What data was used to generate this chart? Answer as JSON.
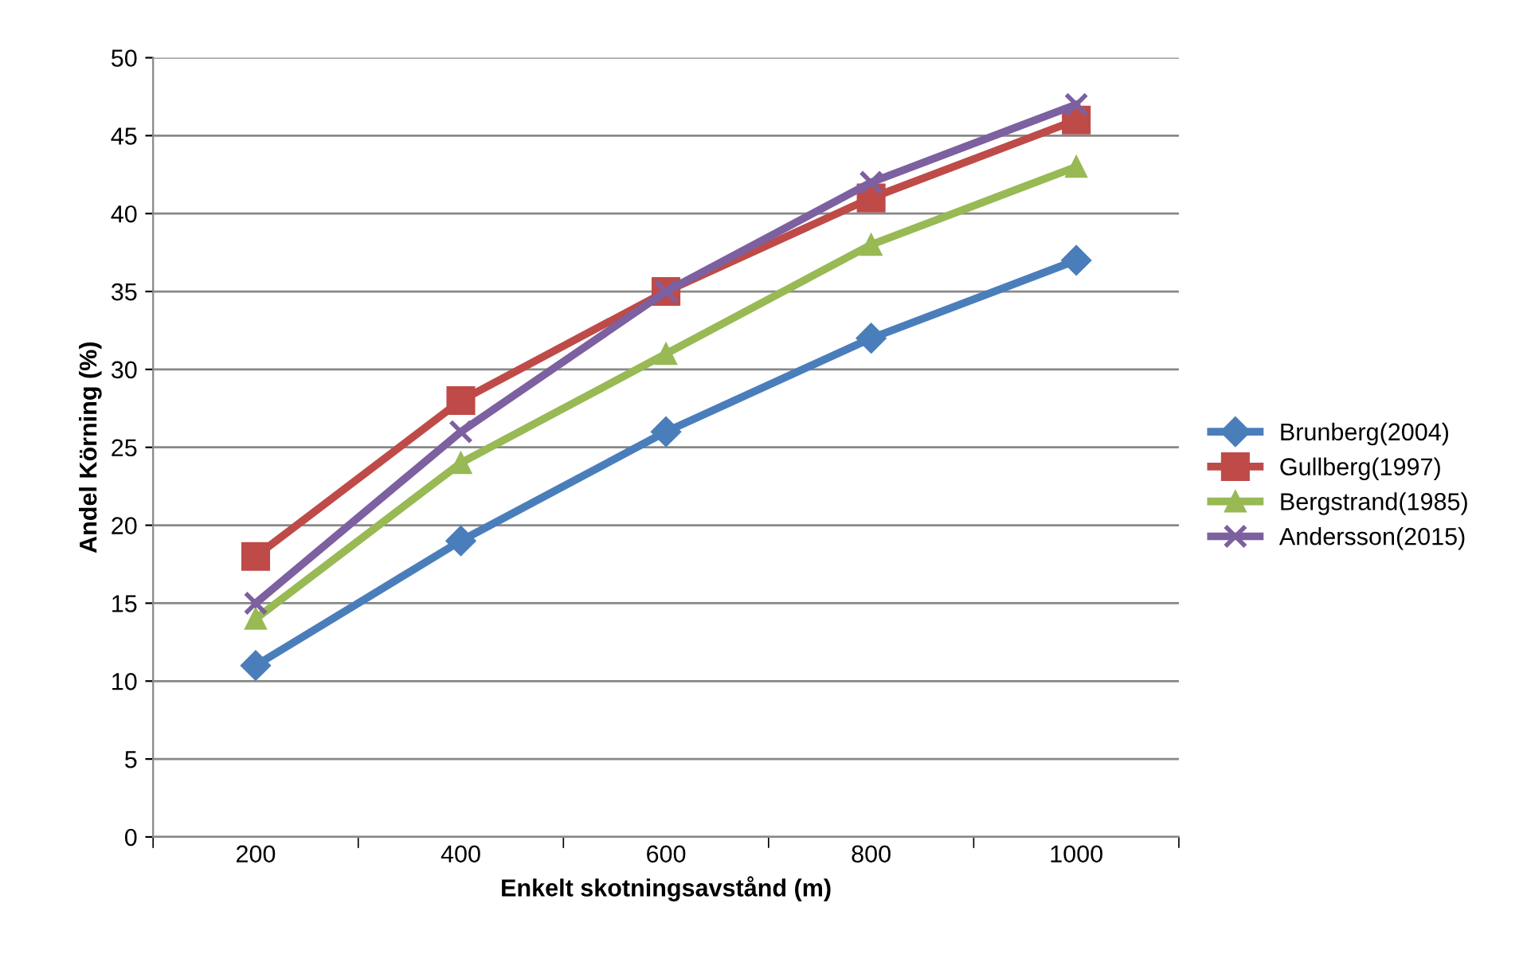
{
  "chart_data": {
    "type": "line",
    "xlabel": "Enkelt skotningsavstånd (m)",
    "ylabel": "Andel Körning (%)",
    "categories": [
      "200",
      "400",
      "600",
      "800",
      "1000"
    ],
    "series": [
      {
        "name": "Brunberg(2004)",
        "color": "#4a7ebb",
        "marker": "diamond",
        "values": [
          11,
          19,
          26,
          32,
          37
        ]
      },
      {
        "name": "Gullberg(1997)",
        "color": "#be4b48",
        "marker": "square",
        "values": [
          18,
          28,
          35,
          41,
          46
        ]
      },
      {
        "name": "Bergstrand(1985)",
        "color": "#98b954",
        "marker": "triangle",
        "values": [
          14,
          24,
          31,
          38,
          43
        ]
      },
      {
        "name": "Andersson(2015)",
        "color": "#7d60a0",
        "marker": "cross",
        "values": [
          15,
          26,
          35,
          42,
          47
        ]
      }
    ],
    "ylim": [
      0,
      50
    ],
    "yticks": [
      0,
      5,
      10,
      15,
      20,
      25,
      30,
      35,
      40,
      45,
      50
    ],
    "grid": "y",
    "legend": "right",
    "line_style": "solid"
  }
}
